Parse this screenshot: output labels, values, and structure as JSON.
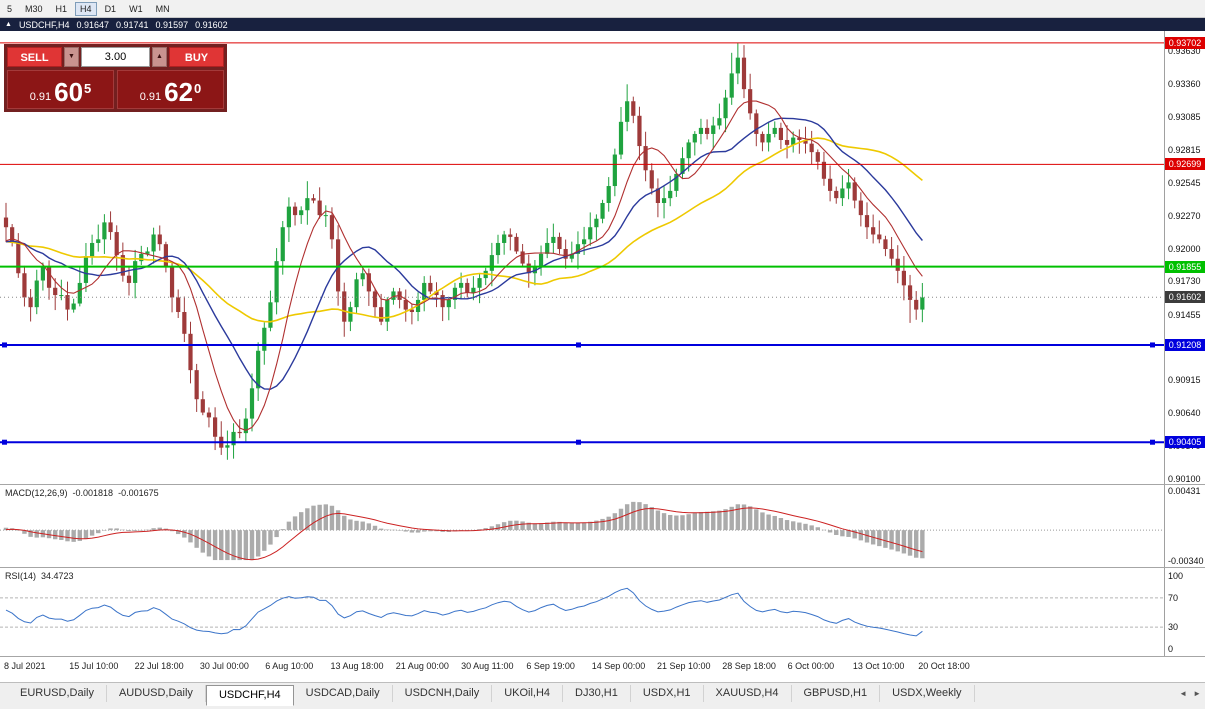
{
  "toolbar": {
    "items": [
      "5",
      "M30",
      "H1",
      "H4",
      "D1",
      "W1",
      "MN"
    ],
    "active": "H4"
  },
  "chart_window": {
    "title": {
      "symbol_tf": "USDCHF,H4",
      "open": "0.91647",
      "high": "0.91741",
      "low": "0.91597",
      "close": "0.91602"
    },
    "trade": {
      "sell_label": "SELL",
      "buy_label": "BUY",
      "volume": "3.00",
      "sell_price": {
        "prefix": "0.91",
        "main": "60",
        "pip": "5"
      },
      "buy_price": {
        "prefix": "0.91",
        "main": "62",
        "pip": "0"
      }
    }
  },
  "macd_panel": {
    "label": "MACD(12,26,9)",
    "value_main": "-0.001818",
    "value_signal": "-0.001675",
    "scale_top": "0.00431",
    "scale_bottom": "-0.00340"
  },
  "rsi_panel": {
    "label": "RSI(14)",
    "value": "34.4723",
    "scale": [
      "100",
      "70",
      "30",
      "0"
    ]
  },
  "tabs": {
    "items": [
      "EURUSD,Daily",
      "AUDUSD,Daily",
      "USDCHF,H4",
      "USDCAD,Daily",
      "USDCNH,Daily",
      "UKOil,H4",
      "DJ30,H1",
      "USDX,H1",
      "XAUUSD,H4",
      "GBPUSD,H1",
      "USDX,Weekly"
    ],
    "active": "USDCHF,H4",
    "scroll_left": "◄",
    "scroll_right": "►"
  },
  "chart_data": {
    "type": "candlestick",
    "symbol": "USDCHF",
    "timeframe": "H4",
    "y_axis": {
      "min": 0.9006,
      "max": 0.938,
      "ticks": [
        "0.93630",
        "0.93360",
        "0.93085",
        "0.92815",
        "0.92545",
        "0.92270",
        "0.92000",
        "0.91730",
        "0.91455",
        "0.91185",
        "0.90915",
        "0.90640",
        "0.90370",
        "0.90100"
      ]
    },
    "first_open": 0.9226,
    "closes": [
      0.9218,
      0.9205,
      0.918,
      0.916,
      0.9152,
      0.9174,
      0.9185,
      0.9168,
      0.9162,
      0.9162,
      0.915,
      0.9155,
      0.9172,
      0.9194,
      0.9205,
      0.9208,
      0.9222,
      0.9214,
      0.9195,
      0.9178,
      0.9172,
      0.919,
      0.9196,
      0.9198,
      0.9212,
      0.9204,
      0.9185,
      0.916,
      0.9148,
      0.913,
      0.91,
      0.9076,
      0.9065,
      0.9061,
      0.9045,
      0.9036,
      0.9038,
      0.9049,
      0.9048,
      0.906,
      0.9085,
      0.9116,
      0.9135,
      0.9156,
      0.919,
      0.9218,
      0.9235,
      0.9228,
      0.9232,
      0.9242,
      0.924,
      0.9228,
      0.9228,
      0.9208,
      0.9165,
      0.914,
      0.9152,
      0.9175,
      0.918,
      0.9165,
      0.9152,
      0.914,
      0.9158,
      0.9165,
      0.9158,
      0.915,
      0.9148,
      0.9158,
      0.9172,
      0.9165,
      0.9162,
      0.9152,
      0.9158,
      0.9168,
      0.9172,
      0.9164,
      0.9168,
      0.9176,
      0.9182,
      0.9195,
      0.9205,
      0.9212,
      0.921,
      0.9198,
      0.9188,
      0.918,
      0.9185,
      0.9196,
      0.9205,
      0.921,
      0.92,
      0.9192,
      0.9196,
      0.9204,
      0.9208,
      0.9218,
      0.9225,
      0.9238,
      0.9252,
      0.9278,
      0.9305,
      0.9322,
      0.931,
      0.9285,
      0.9265,
      0.925,
      0.9238,
      0.9242,
      0.9248,
      0.9262,
      0.9275,
      0.9288,
      0.9295,
      0.93,
      0.9295,
      0.9302,
      0.9308,
      0.9325,
      0.9345,
      0.9358,
      0.9332,
      0.9312,
      0.9295,
      0.9288,
      0.9295,
      0.93,
      0.929,
      0.9286,
      0.9292,
      0.929,
      0.9287,
      0.928,
      0.9272,
      0.9258,
      0.9248,
      0.9242,
      0.925,
      0.9255,
      0.924,
      0.9228,
      0.9218,
      0.9212,
      0.9208,
      0.92,
      0.9192,
      0.9182,
      0.917,
      0.9158,
      0.915,
      0.916
    ],
    "wick_overrides": {
      "35": {
        "low": 0.903
      },
      "36": {
        "low": 0.9026
      },
      "49": {
        "high": 0.9256
      },
      "101": {
        "high": 0.9336
      },
      "118": {
        "high": 0.9362
      },
      "119": {
        "high": 0.937
      },
      "147": {
        "low": 0.9139
      }
    },
    "moving_averages": [
      {
        "name": "ma-slow",
        "period": 34,
        "color": "#EEC900",
        "width": 1.6
      },
      {
        "name": "ma-mid",
        "period": 16,
        "color": "#2B3A9C",
        "width": 1.4
      },
      {
        "name": "ma-fast",
        "period": 8,
        "color": "#B03030",
        "width": 1.1
      }
    ],
    "hlines": [
      {
        "price": 0.93702,
        "color": "#DD0000",
        "width": 1,
        "label": "0.93702",
        "handles": false
      },
      {
        "price": 0.92699,
        "color": "#DD0000",
        "width": 1,
        "label": "0.92699",
        "handles": false
      },
      {
        "price": 0.91855,
        "color": "#00C000",
        "width": 2,
        "label": "0.91855",
        "handles": false
      },
      {
        "price": 0.91208,
        "color": "#0000DD",
        "width": 2,
        "label": "0.91208",
        "handles": true
      },
      {
        "price": 0.90405,
        "color": "#0000DD",
        "width": 2,
        "label": "0.90405",
        "handles": true
      }
    ],
    "current_price": {
      "price": 0.91602,
      "label": "0.91602",
      "box_color": "#3C3C3C"
    },
    "macd": {
      "fast": 12,
      "slow": 26,
      "signal": 9,
      "range": [
        -0.0034,
        0.00431
      ]
    },
    "rsi": {
      "period": 14,
      "levels": [
        70,
        30
      ],
      "range": [
        0,
        100
      ]
    },
    "time_labels": [
      "8 Jul 2021",
      "15 Jul 10:00",
      "22 Jul 18:00",
      "30 Jul 00:00",
      "6 Aug 10:00",
      "13 Aug 18:00",
      "21 Aug 00:00",
      "30 Aug 11:00",
      "6 Sep 19:00",
      "14 Sep 00:00",
      "21 Sep 10:00",
      "28 Sep 18:00",
      "6 Oct 00:00",
      "13 Oct 10:00",
      "20 Oct 18:00"
    ],
    "colors": {
      "bull": "#1FA33F",
      "bear": "#9E3A3A",
      "macd_hist": "#ABABAB",
      "macd_signal": "#CC2222",
      "rsi_line": "#3B74C9"
    }
  }
}
